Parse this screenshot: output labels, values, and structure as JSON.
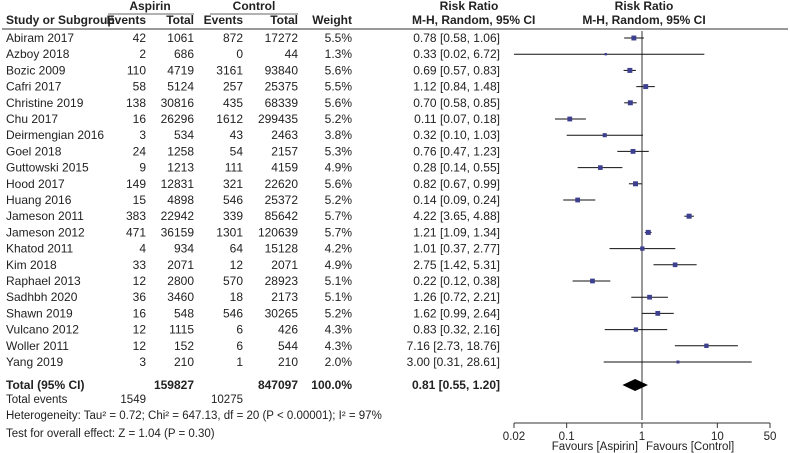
{
  "chart_data": {
    "type": "forest",
    "title": "Risk Ratio",
    "subtitle": "M-H, Random, 95% CI",
    "headers": {
      "study": "Study or Subgroup",
      "group1": "Aspirin",
      "group2": "Control",
      "events": "Events",
      "total": "Total",
      "weight": "Weight",
      "rr": "Risk Ratio",
      "method": "M-H, Random, 95% CI"
    },
    "studies": [
      {
        "name": "Abiram 2017",
        "e1": "42",
        "t1": "1061",
        "e2": "872",
        "t2": "17272",
        "weight": "5.5%",
        "ci_text": "0.78 [0.58, 1.06]",
        "rr": 0.78,
        "lo": 0.58,
        "hi": 1.06
      },
      {
        "name": "Azboy 2018",
        "e1": "2",
        "t1": "686",
        "e2": "0",
        "t2": "44",
        "weight": "1.3%",
        "ci_text": "0.33 [0.02, 6.72]",
        "rr": 0.33,
        "lo": 0.02,
        "hi": 6.72
      },
      {
        "name": "Bozic 2009",
        "e1": "110",
        "t1": "4719",
        "e2": "3161",
        "t2": "93840",
        "weight": "5.6%",
        "ci_text": "0.69 [0.57, 0.83]",
        "rr": 0.69,
        "lo": 0.57,
        "hi": 0.83
      },
      {
        "name": "Cafri 2017",
        "e1": "58",
        "t1": "5124",
        "e2": "257",
        "t2": "25375",
        "weight": "5.5%",
        "ci_text": "1.12 [0.84, 1.48]",
        "rr": 1.12,
        "lo": 0.84,
        "hi": 1.48
      },
      {
        "name": "Christine 2019",
        "e1": "138",
        "t1": "30816",
        "e2": "435",
        "t2": "68339",
        "weight": "5.6%",
        "ci_text": "0.70 [0.58, 0.85]",
        "rr": 0.7,
        "lo": 0.58,
        "hi": 0.85
      },
      {
        "name": "Chu 2017",
        "e1": "16",
        "t1": "26296",
        "e2": "1612",
        "t2": "299435",
        "weight": "5.2%",
        "ci_text": "0.11 [0.07, 0.18]",
        "rr": 0.11,
        "lo": 0.07,
        "hi": 0.18
      },
      {
        "name": "Deirmengian 2016",
        "e1": "3",
        "t1": "534",
        "e2": "43",
        "t2": "2463",
        "weight": "3.8%",
        "ci_text": "0.32 [0.10, 1.03]",
        "rr": 0.32,
        "lo": 0.1,
        "hi": 1.03
      },
      {
        "name": "Goel 2018",
        "e1": "24",
        "t1": "1258",
        "e2": "54",
        "t2": "2157",
        "weight": "5.3%",
        "ci_text": "0.76 [0.47, 1.23]",
        "rr": 0.76,
        "lo": 0.47,
        "hi": 1.23
      },
      {
        "name": "Guttowski 2015",
        "e1": "9",
        "t1": "1213",
        "e2": "111",
        "t2": "4159",
        "weight": "4.9%",
        "ci_text": "0.28 [0.14, 0.55]",
        "rr": 0.28,
        "lo": 0.14,
        "hi": 0.55
      },
      {
        "name": "Hood 2017",
        "e1": "149",
        "t1": "12831",
        "e2": "321",
        "t2": "22620",
        "weight": "5.6%",
        "ci_text": "0.82 [0.67, 0.99]",
        "rr": 0.82,
        "lo": 0.67,
        "hi": 0.99
      },
      {
        "name": "Huang 2016",
        "e1": "15",
        "t1": "4898",
        "e2": "546",
        "t2": "25372",
        "weight": "5.2%",
        "ci_text": "0.14 [0.09, 0.24]",
        "rr": 0.14,
        "lo": 0.09,
        "hi": 0.24
      },
      {
        "name": "Jameson 2011",
        "e1": "383",
        "t1": "22942",
        "e2": "339",
        "t2": "85642",
        "weight": "5.7%",
        "ci_text": "4.22 [3.65, 4.88]",
        "rr": 4.22,
        "lo": 3.65,
        "hi": 4.88
      },
      {
        "name": "Jameson 2012",
        "e1": "471",
        "t1": "36159",
        "e2": "1301",
        "t2": "120639",
        "weight": "5.7%",
        "ci_text": "1.21 [1.09, 1.34]",
        "rr": 1.21,
        "lo": 1.09,
        "hi": 1.34
      },
      {
        "name": "Khatod 2011",
        "e1": "4",
        "t1": "934",
        "e2": "64",
        "t2": "15128",
        "weight": "4.2%",
        "ci_text": "1.01 [0.37, 2.77]",
        "rr": 1.01,
        "lo": 0.37,
        "hi": 2.77
      },
      {
        "name": "Kim 2018",
        "e1": "33",
        "t1": "2071",
        "e2": "12",
        "t2": "2071",
        "weight": "4.9%",
        "ci_text": "2.75 [1.42, 5.31]",
        "rr": 2.75,
        "lo": 1.42,
        "hi": 5.31
      },
      {
        "name": "Raphael 2013",
        "e1": "12",
        "t1": "2800",
        "e2": "570",
        "t2": "28923",
        "weight": "5.1%",
        "ci_text": "0.22 [0.12, 0.38]",
        "rr": 0.22,
        "lo": 0.12,
        "hi": 0.38
      },
      {
        "name": "Sadhbh 2020",
        "e1": "36",
        "t1": "3460",
        "e2": "18",
        "t2": "2173",
        "weight": "5.1%",
        "ci_text": "1.26 [0.72, 2.21]",
        "rr": 1.26,
        "lo": 0.72,
        "hi": 2.21
      },
      {
        "name": "Shawn 2019",
        "e1": "16",
        "t1": "548",
        "e2": "546",
        "t2": "30265",
        "weight": "5.2%",
        "ci_text": "1.62 [0.99, 2.64]",
        "rr": 1.62,
        "lo": 0.99,
        "hi": 2.64
      },
      {
        "name": "Vulcano 2012",
        "e1": "12",
        "t1": "1115",
        "e2": "6",
        "t2": "426",
        "weight": "4.3%",
        "ci_text": "0.83 [0.32, 2.16]",
        "rr": 0.83,
        "lo": 0.32,
        "hi": 2.16
      },
      {
        "name": "Woller 2011",
        "e1": "12",
        "t1": "152",
        "e2": "6",
        "t2": "544",
        "weight": "4.3%",
        "ci_text": "7.16 [2.73, 18.76]",
        "rr": 7.16,
        "lo": 2.73,
        "hi": 18.76
      },
      {
        "name": "Yang 2019",
        "e1": "3",
        "t1": "210",
        "e2": "1",
        "t2": "210",
        "weight": "2.0%",
        "ci_text": "3.00 [0.31, 28.61]",
        "rr": 3.0,
        "lo": 0.31,
        "hi": 28.61
      }
    ],
    "total": {
      "label": "Total (95% CI)",
      "t1": "159827",
      "t2": "847097",
      "weight": "100.0%",
      "ci_text": "0.81 [0.55, 1.20]",
      "rr": 0.81,
      "lo": 0.55,
      "hi": 1.2
    },
    "total_events": {
      "label": "Total events",
      "e1": "1549",
      "e2": "10275"
    },
    "heterogeneity": "Heterogeneity: Tau² = 0.72; Chi² = 647.13, df = 20 (P < 0.00001); I² = 97%",
    "overall_effect": "Test for overall effect: Z = 1.04 (P = 0.30)",
    "x_scale": "log",
    "xlim": [
      0.02,
      50
    ],
    "x_ticks": [
      0.02,
      0.1,
      1,
      10,
      50
    ],
    "x_tick_labels": [
      "0.02",
      "0.1",
      "1",
      "10",
      "50"
    ],
    "favours_left": "Favours [Aspirin]",
    "favours_right": "Favours [Control]"
  }
}
